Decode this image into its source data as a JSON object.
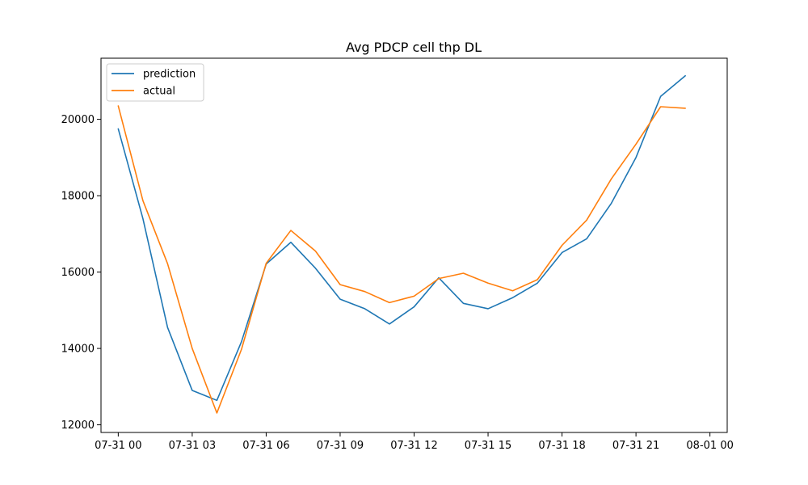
{
  "chart_data": {
    "type": "line",
    "title": "Avg PDCP cell thp DL",
    "xlabel": "",
    "ylabel": "",
    "x_ticks": [
      "07-31 00",
      "07-31 03",
      "07-31 06",
      "07-31 09",
      "07-31 12",
      "07-31 15",
      "07-31 18",
      "07-31 21",
      "08-01 00"
    ],
    "x": [
      "07-31 00:00",
      "07-31 01:00",
      "07-31 02:00",
      "07-31 03:00",
      "07-31 04:00",
      "07-31 05:00",
      "07-31 06:00",
      "07-31 07:00",
      "07-31 08:00",
      "07-31 09:00",
      "07-31 10:00",
      "07-31 11:00",
      "07-31 12:00",
      "07-31 13:00",
      "07-31 14:00",
      "07-31 15:00",
      "07-31 16:00",
      "07-31 17:00",
      "07-31 18:00",
      "07-31 19:00",
      "07-31 20:00",
      "07-31 21:00",
      "07-31 22:00",
      "07-31 23:00"
    ],
    "xlim": [
      "07-30 23:18",
      "08-01 00:42"
    ],
    "ylim": [
      11800,
      21600
    ],
    "y_ticks": [
      "12000",
      "14000",
      "16000",
      "18000",
      "20000"
    ],
    "y_tick_values": [
      12000,
      14000,
      16000,
      18000,
      20000
    ],
    "grid": false,
    "legend_position": "top-left",
    "series": [
      {
        "name": "prediction",
        "color": "#1f77b4",
        "values": [
          19750,
          17400,
          14550,
          12900,
          12640,
          14180,
          16210,
          16780,
          16100,
          15290,
          15040,
          14640,
          15090,
          15850,
          15180,
          15040,
          15330,
          15710,
          16510,
          16870,
          17800,
          19000,
          20600,
          21140
        ]
      },
      {
        "name": "actual",
        "color": "#ff7f0e",
        "values": [
          20350,
          17870,
          16220,
          14000,
          12310,
          13980,
          16230,
          17090,
          16550,
          15670,
          15490,
          15200,
          15370,
          15830,
          15970,
          15710,
          15510,
          15800,
          16700,
          17360,
          18440,
          19350,
          20330,
          20290
        ]
      }
    ]
  }
}
